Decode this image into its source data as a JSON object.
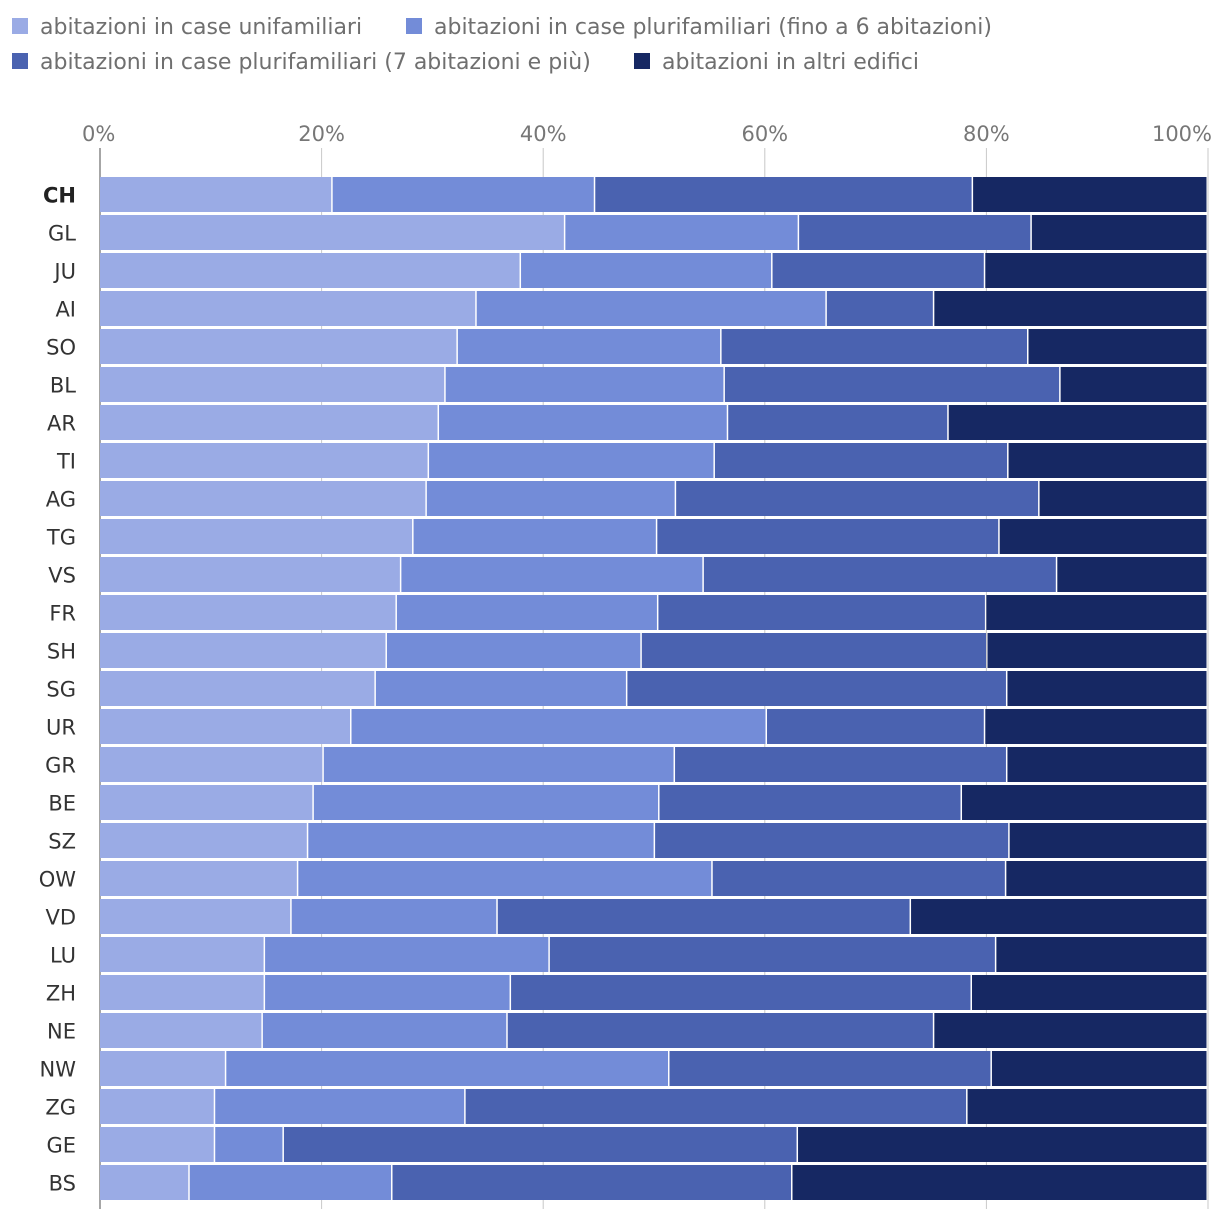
{
  "chart_data": {
    "type": "bar",
    "orientation": "horizontal",
    "stacked": true,
    "normalized": true,
    "title": "",
    "xlabel": "",
    "ylabel": "",
    "xlim": [
      0,
      100
    ],
    "ticks": [
      "0%",
      "20%",
      "40%",
      "60%",
      "80%",
      "100%"
    ],
    "tick_values": [
      0,
      20,
      40,
      60,
      80,
      100
    ],
    "grid": true,
    "legend_position": "top",
    "highlight_category": "CH",
    "categories": [
      "CH",
      "GL",
      "JU",
      "AI",
      "SO",
      "BL",
      "AR",
      "TI",
      "AG",
      "TG",
      "VS",
      "FR",
      "SH",
      "SG",
      "UR",
      "GR",
      "BE",
      "SZ",
      "OW",
      "VD",
      "LU",
      "ZH",
      "NE",
      "NW",
      "ZG",
      "GE",
      "BS"
    ],
    "series": [
      {
        "name": "abitazioni in case unifamiliari",
        "color": "#9aabe5",
        "values": [
          21.0,
          42.0,
          38.0,
          34.0,
          32.3,
          31.2,
          30.6,
          29.7,
          29.5,
          28.3,
          27.2,
          26.8,
          25.9,
          24.9,
          22.7,
          20.2,
          19.3,
          18.8,
          17.9,
          17.3,
          14.9,
          14.9,
          14.7,
          11.4,
          10.4,
          10.4,
          8.1
        ]
      },
      {
        "name": "abitazioni in case plurifamiliari (fino a 6 abitazioni)",
        "color": "#738cd8",
        "values": [
          23.7,
          21.1,
          22.7,
          31.6,
          23.8,
          25.2,
          26.1,
          25.8,
          22.5,
          22.0,
          27.3,
          23.6,
          23.0,
          22.7,
          37.5,
          31.7,
          31.2,
          31.3,
          37.4,
          18.6,
          25.7,
          22.2,
          22.1,
          40.0,
          22.6,
          6.2,
          18.3
        ]
      },
      {
        "name": "abitazioni in case plurifamiliari (7 abitazioni e più)",
        "color": "#4a62b0",
        "values": [
          34.1,
          21.0,
          19.2,
          9.7,
          27.7,
          30.3,
          19.9,
          26.5,
          32.8,
          30.9,
          31.9,
          29.6,
          31.2,
          34.3,
          19.7,
          30.0,
          27.3,
          32.0,
          26.5,
          37.3,
          40.3,
          41.6,
          38.5,
          29.1,
          45.3,
          46.4,
          36.1
        ]
      },
      {
        "name": "abitazioni in altri edifici",
        "color": "#162863",
        "values": [
          21.2,
          15.9,
          20.1,
          24.7,
          16.2,
          13.3,
          23.4,
          18.0,
          15.2,
          18.8,
          13.6,
          20.0,
          19.9,
          18.1,
          20.1,
          18.1,
          22.2,
          17.9,
          18.2,
          26.8,
          19.1,
          21.3,
          24.7,
          19.5,
          21.7,
          37.0,
          37.5
        ]
      }
    ]
  }
}
